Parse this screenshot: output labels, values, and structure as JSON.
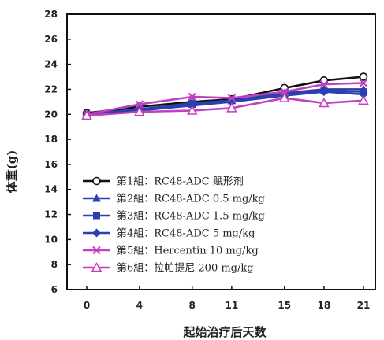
{
  "chart_data": {
    "type": "line",
    "title": "",
    "xlabel": "起始治疗后天数",
    "ylabel": "体重(g)",
    "x": [
      0,
      4,
      8,
      11,
      15,
      18,
      21
    ],
    "x_ticks": [
      "0",
      "4",
      "8",
      "11",
      "15",
      "18",
      "21"
    ],
    "ylim": [
      6,
      28
    ],
    "y_ticks": [
      "6",
      "8",
      "10",
      "12",
      "14",
      "16",
      "18",
      "20",
      "22",
      "24",
      "26",
      "28"
    ],
    "grid": false,
    "legend_position": "bottom-left",
    "series": [
      {
        "name": "第1組：RC48-ADC 赋形剂",
        "color": "#111111",
        "marker": "circle-open",
        "values": [
          20.1,
          20.6,
          21.0,
          21.2,
          22.1,
          22.7,
          23.0
        ]
      },
      {
        "name": "第2組：RC48-ADC 0.5 mg/kg",
        "color": "#2a3fb0",
        "marker": "triangle-filled",
        "values": [
          20.0,
          20.4,
          20.8,
          21.1,
          21.7,
          22.0,
          22.0
        ]
      },
      {
        "name": "第3組：RC48-ADC 1.5 mg/kg",
        "color": "#2a3fb0",
        "marker": "square-filled",
        "values": [
          20.0,
          20.4,
          20.9,
          21.1,
          21.6,
          21.9,
          21.8
        ]
      },
      {
        "name": "第4組：RC48-ADC 5 mg/kg",
        "color": "#2a3fb0",
        "marker": "diamond-filled",
        "values": [
          19.9,
          20.3,
          20.7,
          21.0,
          21.5,
          21.8,
          21.6
        ]
      },
      {
        "name": "第5組：Hercentin 10 mg/kg",
        "color": "#c040c0",
        "marker": "x",
        "values": [
          20.0,
          20.8,
          21.4,
          21.3,
          21.8,
          22.4,
          22.5
        ]
      },
      {
        "name": "第6組：拉帕提尼  200 mg/kg",
        "color": "#c040c0",
        "marker": "triangle-open",
        "values": [
          19.9,
          20.2,
          20.3,
          20.5,
          21.3,
          20.9,
          21.1
        ]
      }
    ]
  }
}
